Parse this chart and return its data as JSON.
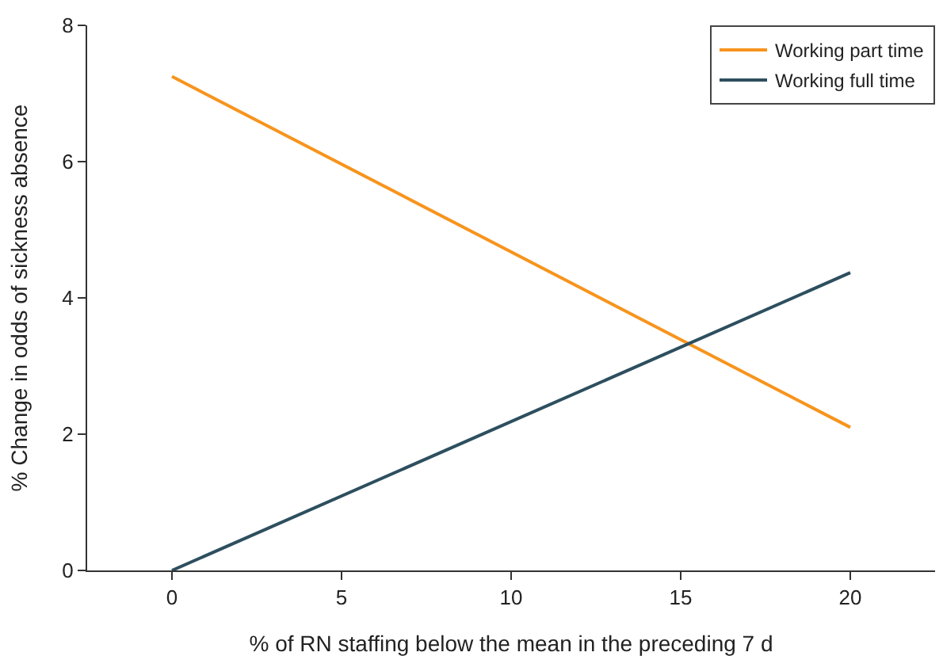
{
  "chart_data": {
    "type": "line",
    "xlabel": "% of RN staffing below the mean in the preceding 7 d",
    "ylabel": "% Change in odds of sickness absence",
    "x": [
      0,
      20
    ],
    "series": [
      {
        "name": "Working part time",
        "color": "#f7941d",
        "values": [
          7.25,
          2.1
        ]
      },
      {
        "name": "Working full time",
        "color": "#2d4f5f",
        "values": [
          0,
          4.37
        ]
      }
    ],
    "xlim": [
      -2.5,
      22.5
    ],
    "xticks": [
      0,
      5,
      10,
      15,
      20
    ],
    "ylim": [
      0,
      8
    ],
    "yticks": [
      0,
      2,
      4,
      6,
      8
    ],
    "grid": false,
    "legend": "top right",
    "marker": "none",
    "line_style": "solid"
  }
}
